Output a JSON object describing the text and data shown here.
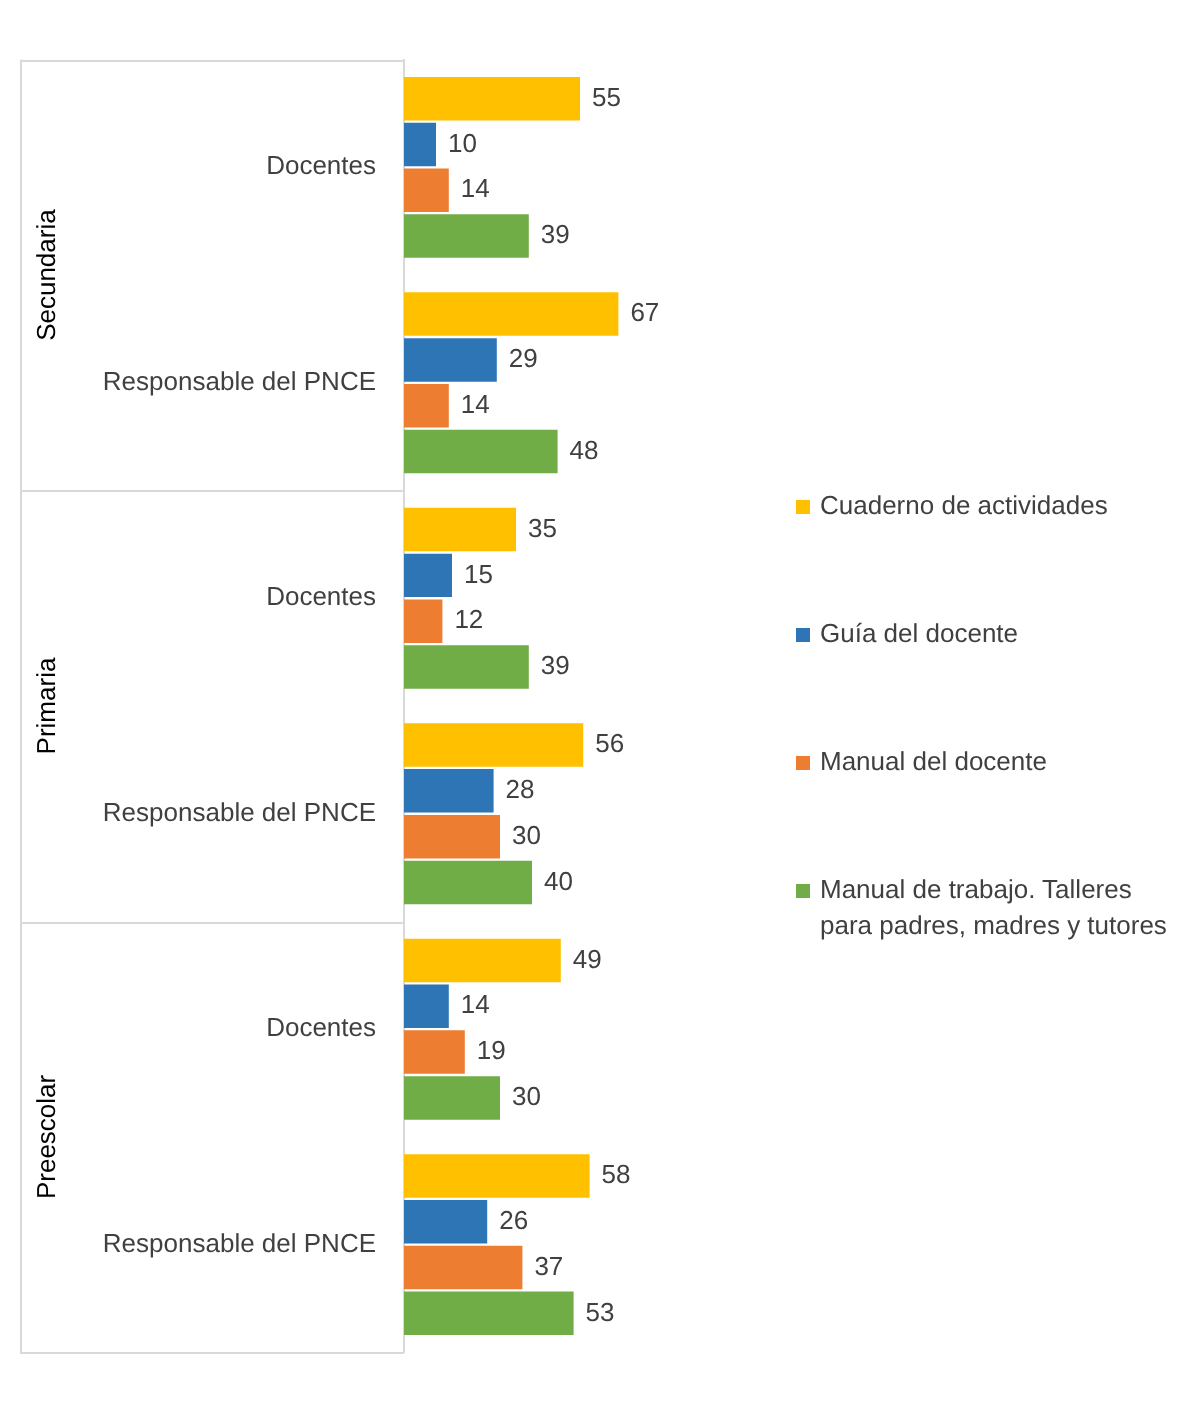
{
  "chart_data": {
    "type": "bar",
    "orientation": "horizontal",
    "categories": [
      "Docentes",
      "Responsable del PNCE",
      "Docentes",
      "Responsable del PNCE",
      "Docentes",
      "Responsable del PNCE"
    ],
    "series": [
      {
        "name": "Cuaderno de actividades",
        "color": "#ffc000",
        "values": [
          55,
          67,
          35,
          56,
          49,
          58
        ]
      },
      {
        "name": "Guía del docente",
        "color": "#2e75b6",
        "values": [
          10,
          29,
          15,
          28,
          14,
          26
        ]
      },
      {
        "name": "Manual del docente",
        "color": "#ed7d31",
        "values": [
          14,
          14,
          12,
          30,
          19,
          37
        ]
      },
      {
        "name": "Manual de trabajo. Talleres para padres, madres y tutores",
        "color": "#70ad47",
        "values": [
          39,
          48,
          39,
          40,
          30,
          53
        ]
      }
    ],
    "annotations": [
      "Secundaria",
      "Primaria",
      "Preescolar"
    ],
    "data_labels": true,
    "grid": false,
    "legend": "right",
    "tick_labels": "y"
  }
}
